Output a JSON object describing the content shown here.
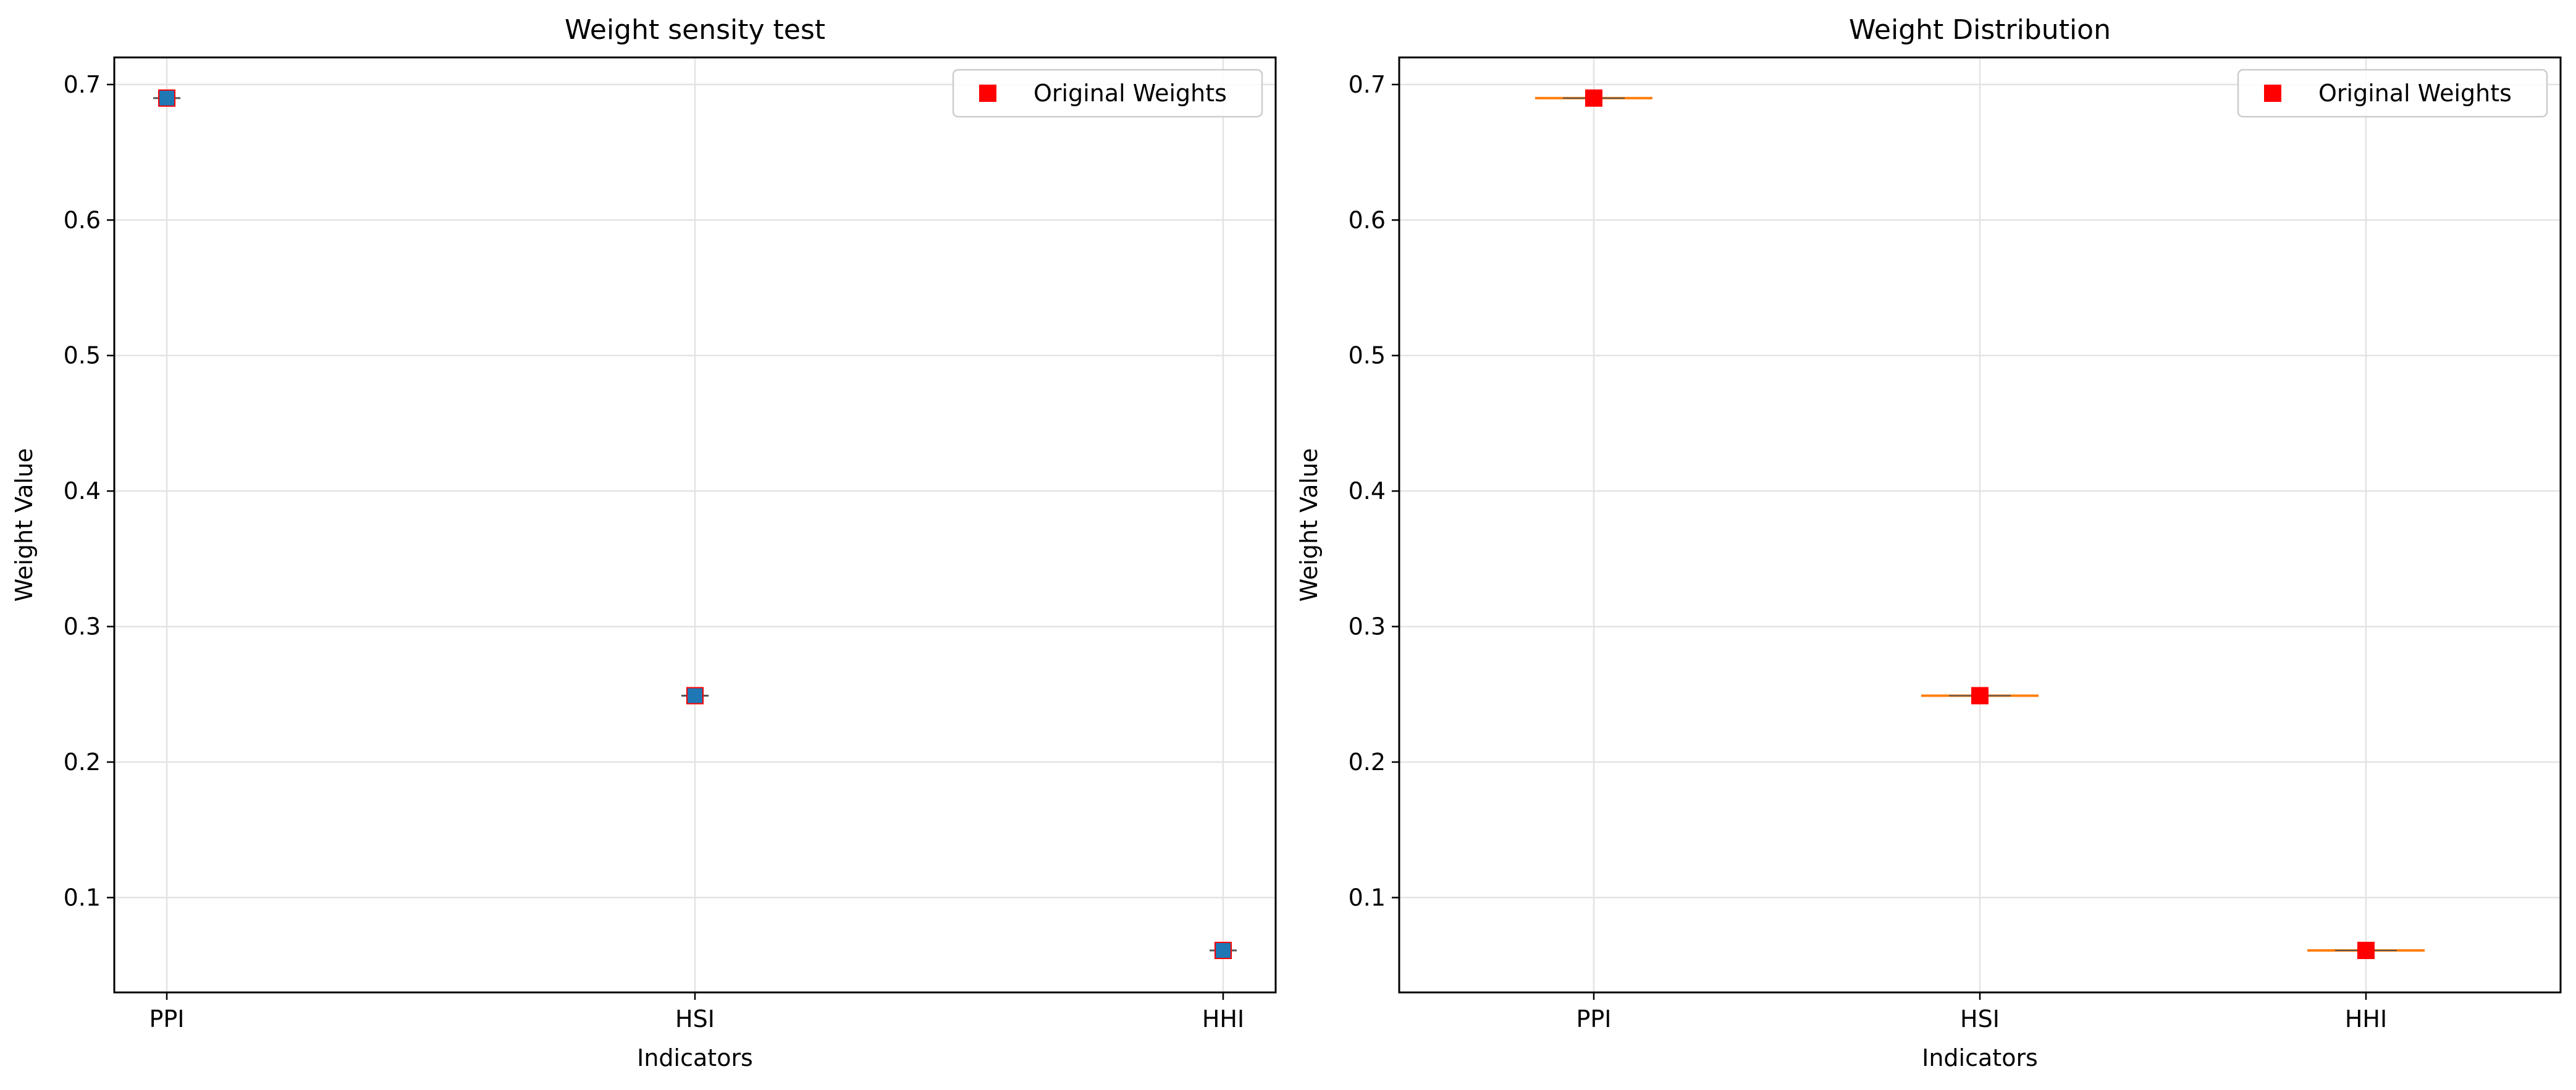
{
  "chart_data": [
    {
      "type": "scatter",
      "title": "Weight sensity test",
      "xlabel": "Indicators",
      "ylabel": "Weight Value",
      "categories": [
        "PPI",
        "HSI",
        "HHI"
      ],
      "ylim": [
        0.03,
        0.72
      ],
      "yticks": [
        "0.1",
        "0.2",
        "0.3",
        "0.4",
        "0.5",
        "0.6",
        "0.7"
      ],
      "grid": true,
      "legend": {
        "position": "top-right",
        "entries": [
          "Original Weights"
        ]
      },
      "series": [
        {
          "name": "Original Weights",
          "marker": "square",
          "color": "#ff0000",
          "values": [
            0.69,
            0.249,
            0.061
          ]
        },
        {
          "marker": "square",
          "color": "#1f77b4",
          "values": [
            0.69,
            0.249,
            0.061
          ]
        }
      ]
    },
    {
      "type": "box",
      "title": "Weight Distribution",
      "xlabel": "Indicators",
      "ylabel": "Weight Value",
      "categories": [
        "PPI",
        "HSI",
        "HHI"
      ],
      "ylim": [
        0.03,
        0.72
      ],
      "yticks": [
        "0.1",
        "0.2",
        "0.3",
        "0.4",
        "0.5",
        "0.6",
        "0.7"
      ],
      "grid": true,
      "legend": {
        "position": "top-right",
        "entries": [
          "Original Weights"
        ]
      },
      "medians": [
        0.69,
        0.249,
        0.061
      ],
      "median_color": "#ff7f0e",
      "series": [
        {
          "name": "Original Weights",
          "marker": "square",
          "color": "#ff0000",
          "values": [
            0.69,
            0.249,
            0.061
          ]
        }
      ]
    }
  ]
}
